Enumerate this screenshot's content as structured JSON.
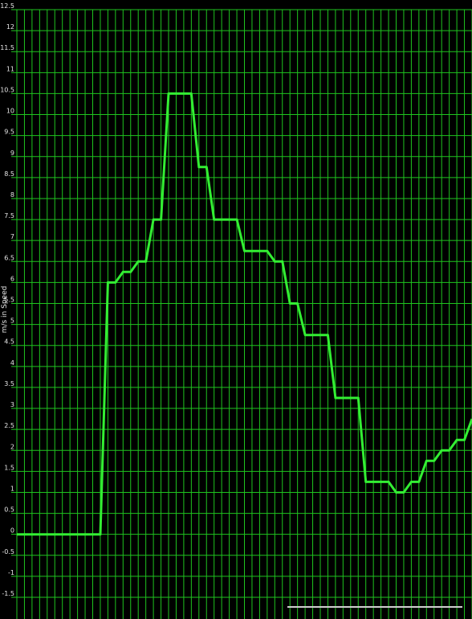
{
  "chart_data": {
    "type": "line",
    "title": "",
    "xlabel": "",
    "ylabel": "m/s in Speed",
    "ylim": [
      -1.5,
      12.5
    ],
    "ytick_step": 0.5,
    "yticks": [
      "-1.5",
      "-1",
      "-0.5",
      "0",
      "0.5",
      "1",
      "1.5",
      "2",
      "2.5",
      "3",
      "3.5",
      "4",
      "4.5",
      "5",
      "5.5",
      "6",
      "6.5",
      "7",
      "7.5",
      "8",
      "8.5",
      "9",
      "9.5",
      "10",
      "10.5",
      "11",
      "11.5",
      "12",
      "12.5"
    ],
    "xlim": [
      0,
      60
    ],
    "x_gridlines": 61,
    "grid": true,
    "legend": "none",
    "colors": {
      "background": "#000000",
      "grid": "#1fc41f",
      "line": "#33ee33",
      "text": "#e6e6e6",
      "scrollbar": "#cfcfcf"
    },
    "series": [
      {
        "x": [
          0,
          11,
          12,
          13,
          14,
          15,
          16,
          17,
          18,
          19,
          20,
          21,
          22,
          23,
          24,
          25,
          26,
          27,
          28,
          29,
          30,
          31,
          32,
          33,
          34,
          35,
          36,
          37,
          38,
          39,
          40,
          41,
          42,
          43,
          44,
          45,
          46,
          47,
          48,
          49,
          50,
          51,
          52,
          53,
          54,
          55,
          56,
          57,
          58,
          59,
          60
        ],
        "y": [
          0,
          0,
          6,
          6,
          6.25,
          6.25,
          6.5,
          6.5,
          7.5,
          7.5,
          10.5,
          10.5,
          10.5,
          10.5,
          8.75,
          8.75,
          7.5,
          7.5,
          7.5,
          7.5,
          6.75,
          6.75,
          6.75,
          6.75,
          6.5,
          6.5,
          5.5,
          5.5,
          4.75,
          4.75,
          4.75,
          4.75,
          3.25,
          3.25,
          3.25,
          3.25,
          1.25,
          1.25,
          1.25,
          1.25,
          1,
          1,
          1.25,
          1.25,
          1.75,
          1.75,
          2,
          2,
          2.25,
          2.25,
          2.75
        ]
      }
    ]
  }
}
